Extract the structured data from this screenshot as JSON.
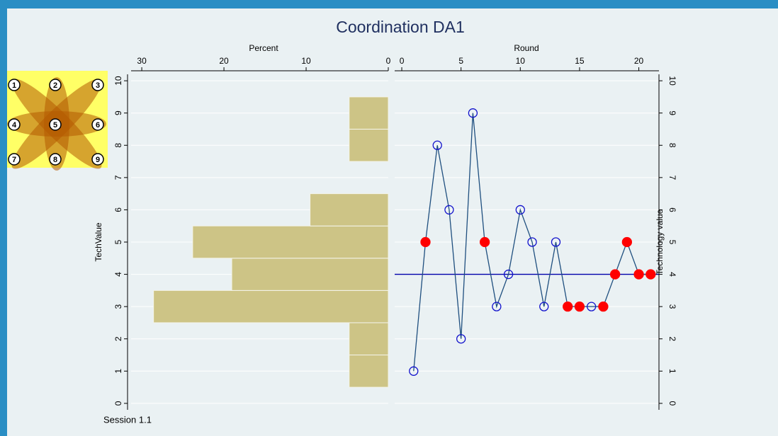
{
  "title": "Coordination  DA1",
  "footer": "Session 1.1",
  "icon": {
    "labels": [
      "1",
      "2",
      "3",
      "4",
      "5",
      "6",
      "7",
      "8",
      "9"
    ]
  },
  "chart_data": [
    {
      "type": "hbar",
      "xlabel": "Percent",
      "ylabel": "TechValue",
      "categories": [
        1,
        2,
        3,
        4,
        5,
        6,
        8,
        9
      ],
      "values": [
        4.76,
        4.76,
        28.57,
        19.05,
        23.81,
        9.52,
        4.76,
        4.76
      ],
      "color": "#cdc486",
      "xlim": [
        0,
        31.3
      ],
      "x_reverse": true,
      "xticks": [
        0,
        10,
        20,
        30
      ],
      "ylim": [
        -0.2,
        10.2
      ],
      "yticks": [
        0,
        1,
        2,
        3,
        4,
        5,
        6,
        7,
        8,
        9,
        10
      ],
      "grid": true
    },
    {
      "type": "line",
      "xlabel": "Round",
      "ylabel": "Technology value",
      "x": [
        1,
        2,
        3,
        4,
        5,
        6,
        7,
        8,
        9,
        10,
        11,
        12,
        13,
        14,
        15,
        16,
        17,
        18,
        19,
        20,
        21
      ],
      "series": [
        {
          "color": "#1f4f7f",
          "values": [
            1,
            5,
            8,
            6,
            2,
            9,
            5,
            3,
            4,
            6,
            5,
            3,
            5,
            3,
            3,
            3,
            3,
            4,
            5,
            4,
            4
          ],
          "filled": [
            false,
            true,
            false,
            false,
            false,
            false,
            true,
            false,
            false,
            false,
            false,
            false,
            false,
            true,
            true,
            false,
            true,
            true,
            true,
            true,
            true
          ]
        }
      ],
      "marker_color": "#1010cc",
      "filled_color": "#ff0000",
      "hline": 4,
      "hline_color": "#0000aa",
      "xlim": [
        -0.6,
        21.7
      ],
      "xticks": [
        0,
        5,
        10,
        15,
        20
      ],
      "ylim": [
        -0.2,
        10.2
      ],
      "yticks": [
        0,
        1,
        2,
        3,
        4,
        5,
        6,
        7,
        8,
        9,
        10
      ],
      "grid": true
    }
  ]
}
